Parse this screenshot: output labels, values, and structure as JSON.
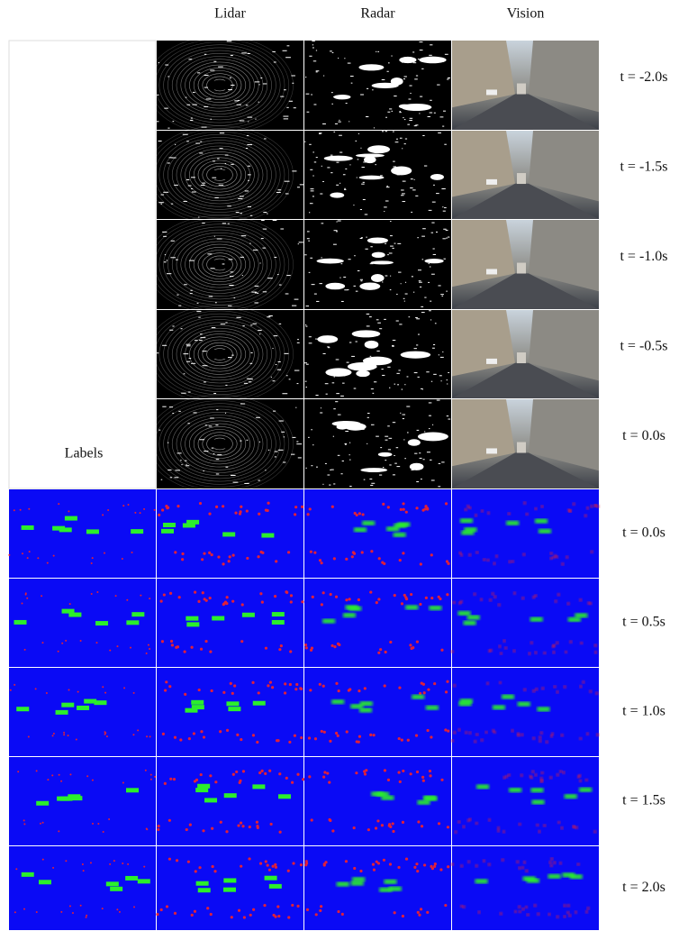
{
  "header": {
    "columns": [
      "Lidar",
      "Radar",
      "Vision"
    ]
  },
  "labels_title": "Labels",
  "history_rows": [
    "t = -2.0s",
    "t = -1.5s",
    "t = -1.0s",
    "t = -0.5s",
    "t = 0.0s"
  ],
  "future_rows": [
    "t = 0.0s",
    "t = 0.5s",
    "t = 1.0s",
    "t = 1.5s",
    "t = 2.0s"
  ]
}
